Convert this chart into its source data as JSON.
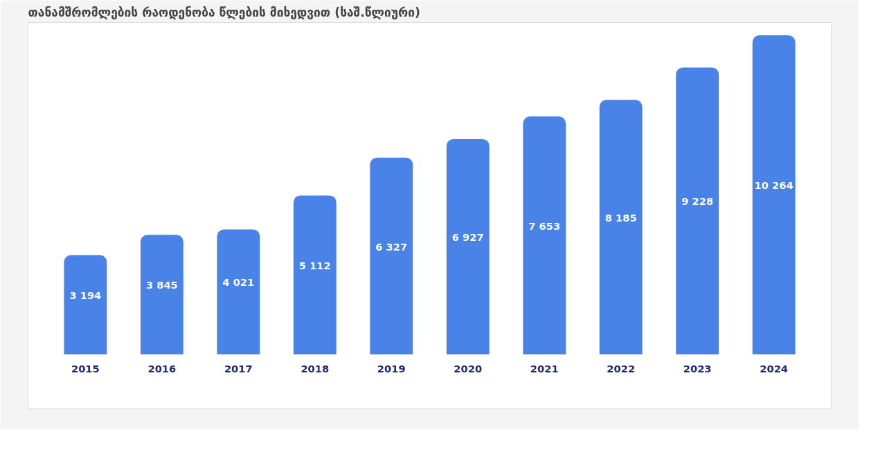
{
  "chart_data": {
    "type": "bar",
    "title": "თანამშრომლების რაოდენობა წლების მიხედვით (საშ.წლიური)",
    "categories": [
      "2015",
      "2016",
      "2017",
      "2018",
      "2019",
      "2020",
      "2021",
      "2022",
      "2023",
      "2024"
    ],
    "values": [
      3194,
      3845,
      4021,
      5112,
      6327,
      6927,
      7653,
      8185,
      9228,
      10264
    ],
    "value_labels": [
      "3 194",
      "3 845",
      "4 021",
      "5 112",
      "6 327",
      "6 927",
      "7 653",
      "8 185",
      "9 228",
      "10 264"
    ],
    "color": "#4a83e8",
    "grid": false
  }
}
